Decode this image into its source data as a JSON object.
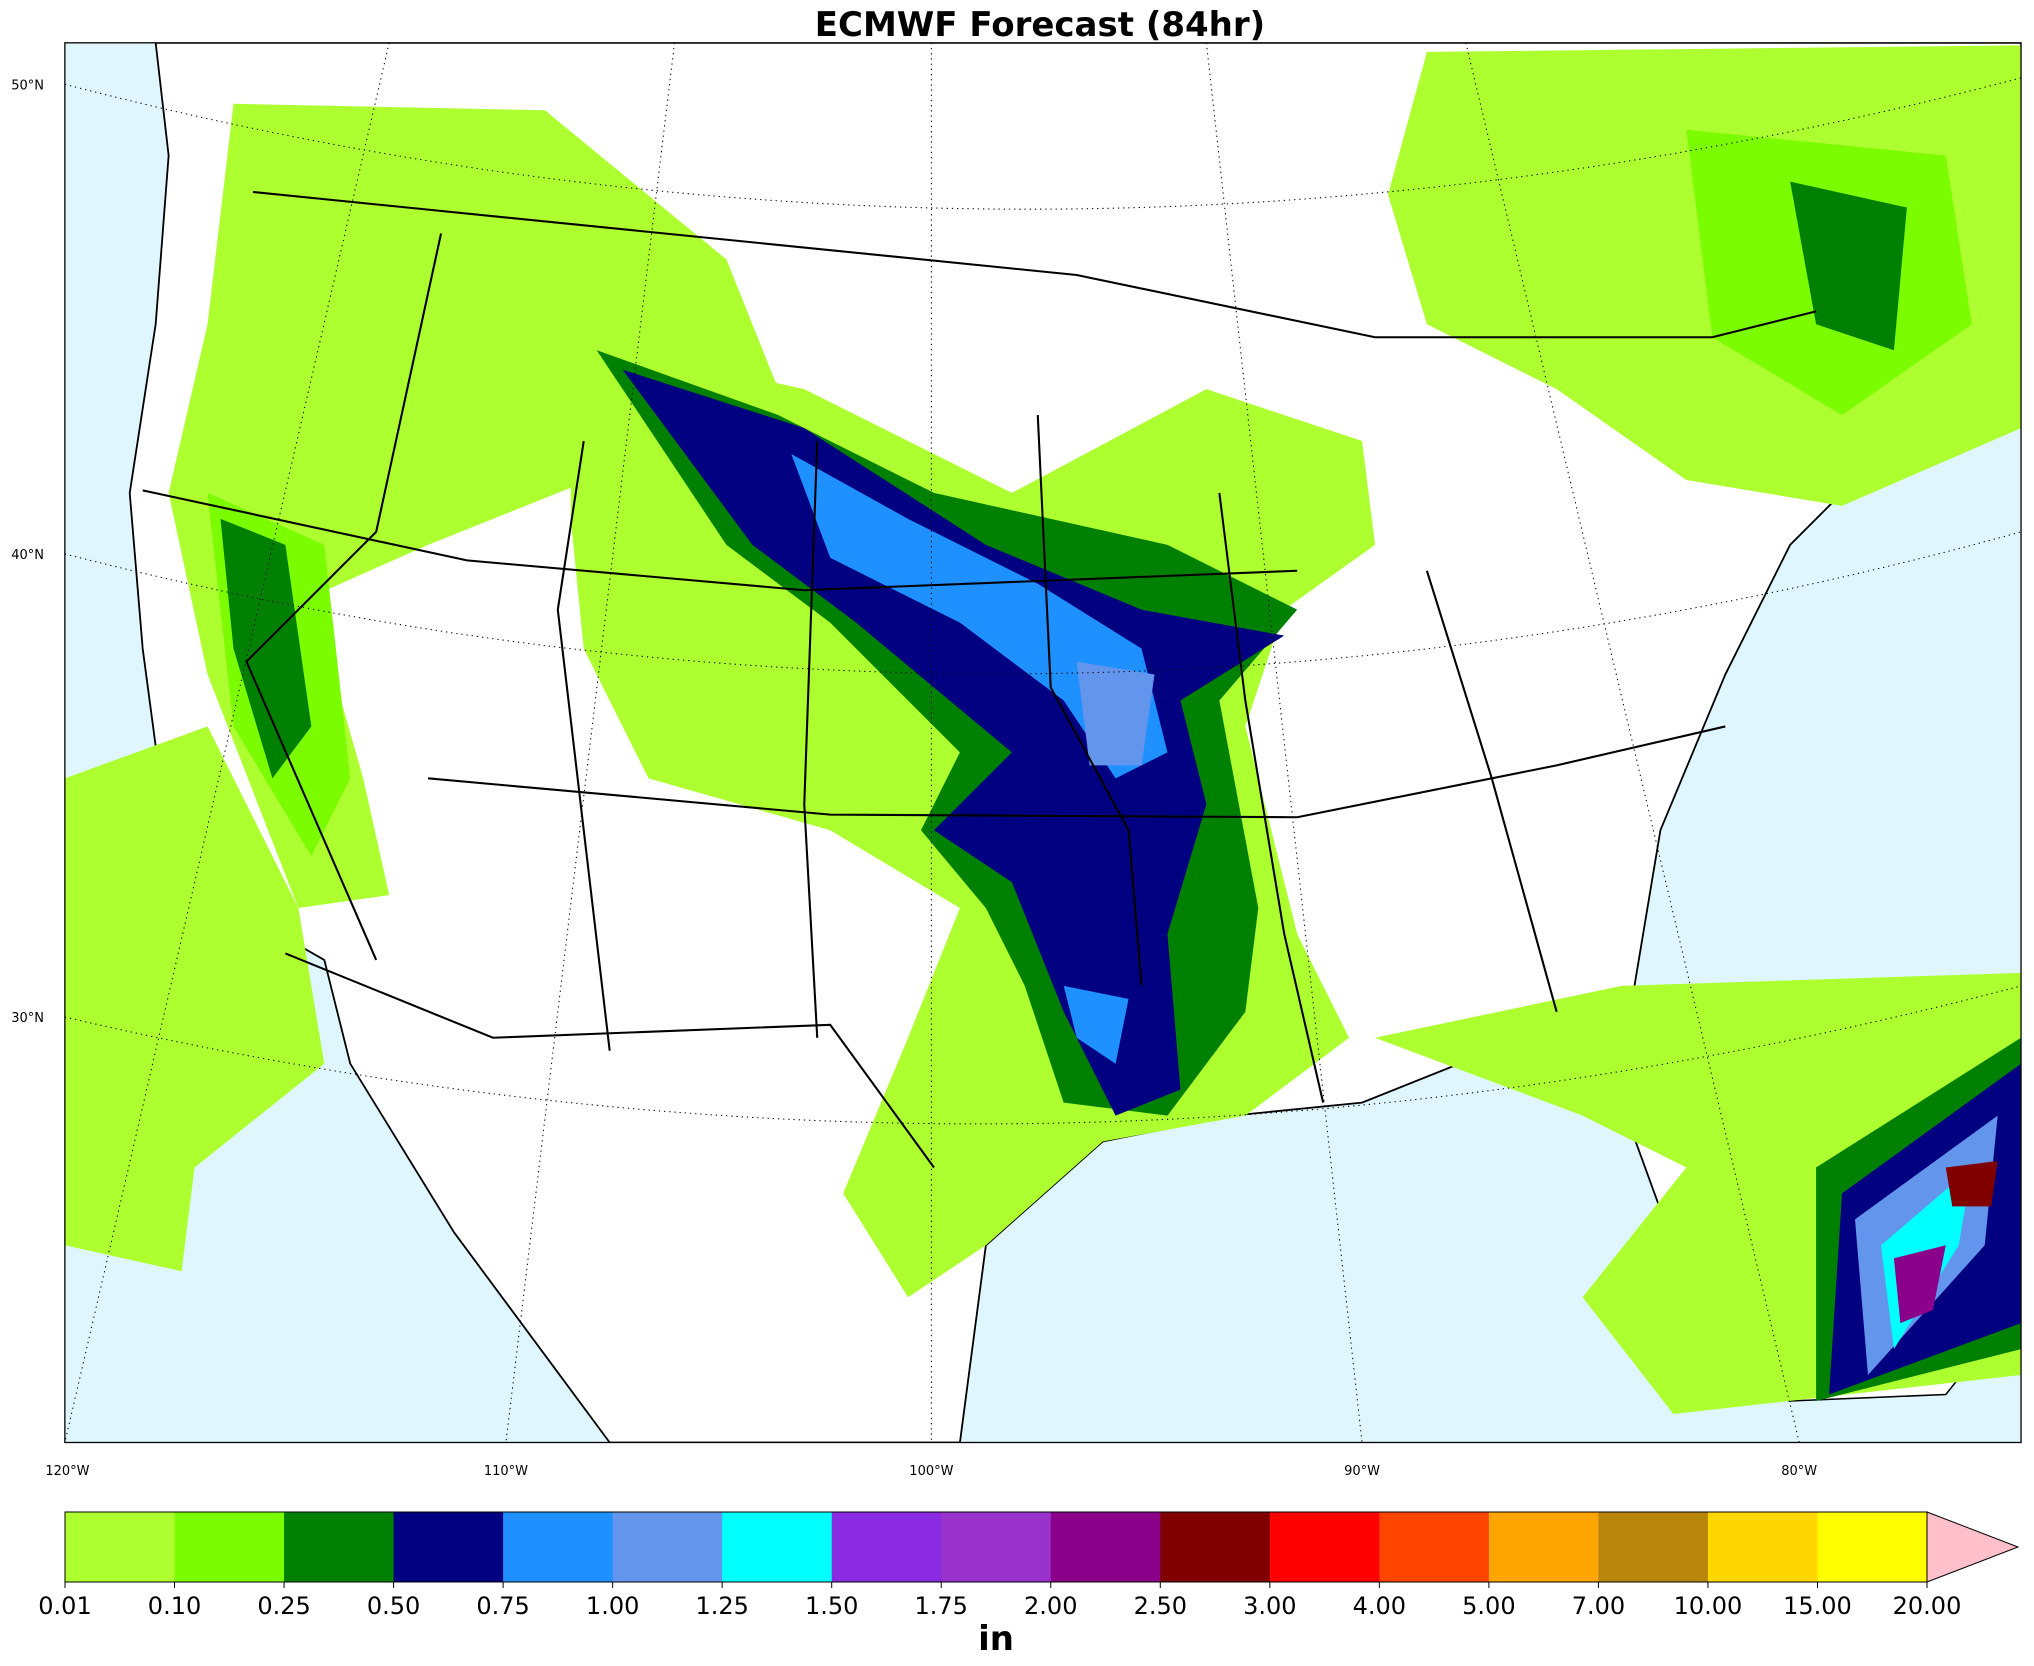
{
  "title": "ECMWF Forecast (84hr)",
  "map": {
    "lat_labels": [
      "50°N",
      "40°N",
      "30°N"
    ],
    "lon_labels": [
      "120°W",
      "110°W",
      "100°W",
      "90°W",
      "80°W"
    ]
  },
  "colorbar": {
    "levels": [
      "0.01",
      "0.10",
      "0.25",
      "0.50",
      "0.75",
      "1.00",
      "1.25",
      "1.50",
      "1.75",
      "2.00",
      "2.50",
      "3.00",
      "4.00",
      "5.00",
      "7.00",
      "10.00",
      "15.00",
      "20.00"
    ],
    "colors": [
      "#adff2f",
      "#7cfc00",
      "#008000",
      "#000080",
      "#1e90ff",
      "#6495ed",
      "#00ffff",
      "#8a2be2",
      "#9932cc",
      "#8b008b",
      "#800000",
      "#ff0000",
      "#ff4500",
      "#ffa500",
      "#b8860b",
      "#ffd700",
      "#ffff00"
    ],
    "extend_color": "#ffc0cb",
    "label": "in"
  }
}
